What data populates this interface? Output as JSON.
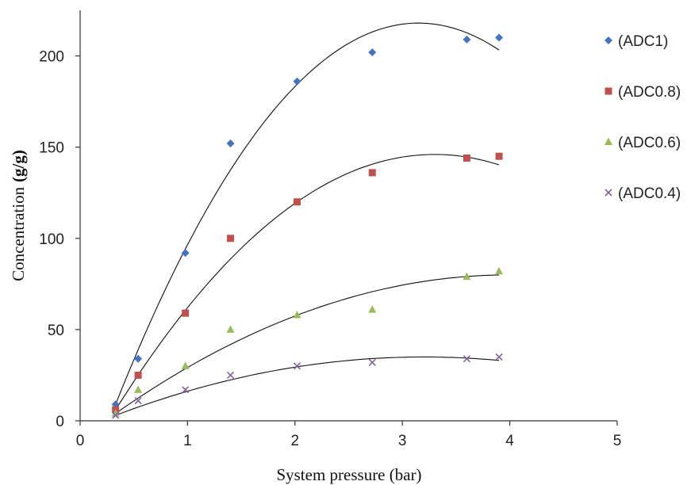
{
  "chart_data": {
    "type": "scatter",
    "xlabel": "System pressure (bar)",
    "ylabel": "Concentration",
    "ylabel_unit": "(g/g)",
    "xlim": [
      0,
      5
    ],
    "ylim": [
      0,
      225
    ],
    "xticks": [
      0,
      1,
      2,
      3,
      4,
      5
    ],
    "yticks": [
      0,
      50,
      100,
      150,
      200
    ],
    "grid": false,
    "legend_position": "right",
    "trendline": "polynomial",
    "x": [
      0.33,
      0.54,
      0.98,
      1.4,
      2.02,
      2.72,
      3.6,
      3.9
    ],
    "series": [
      {
        "name": "(ADC1)",
        "marker": "diamond",
        "color": "#4472C4",
        "values": [
          9,
          34,
          92,
          152,
          186,
          202,
          209,
          210
        ],
        "fit": [
          0.33,
          218,
          3.15
        ]
      },
      {
        "name": "(ADC0.8)",
        "marker": "square",
        "color": "#C0504D",
        "values": [
          6,
          25,
          59,
          100,
          120,
          136,
          144,
          145
        ],
        "fit": [
          0.33,
          146,
          3.3
        ]
      },
      {
        "name": "(ADC0.6)",
        "marker": "triangle",
        "color": "#9BBB59",
        "values": [
          4,
          17,
          30,
          50,
          58,
          61,
          79,
          82
        ],
        "fit": [
          0.33,
          80,
          4.0
        ]
      },
      {
        "name": "(ADC0.4)",
        "marker": "x",
        "color": "#8064A2",
        "values": [
          3,
          11,
          17,
          25,
          30,
          32,
          34,
          35
        ],
        "fit": [
          0.33,
          35,
          3.2
        ]
      }
    ]
  }
}
